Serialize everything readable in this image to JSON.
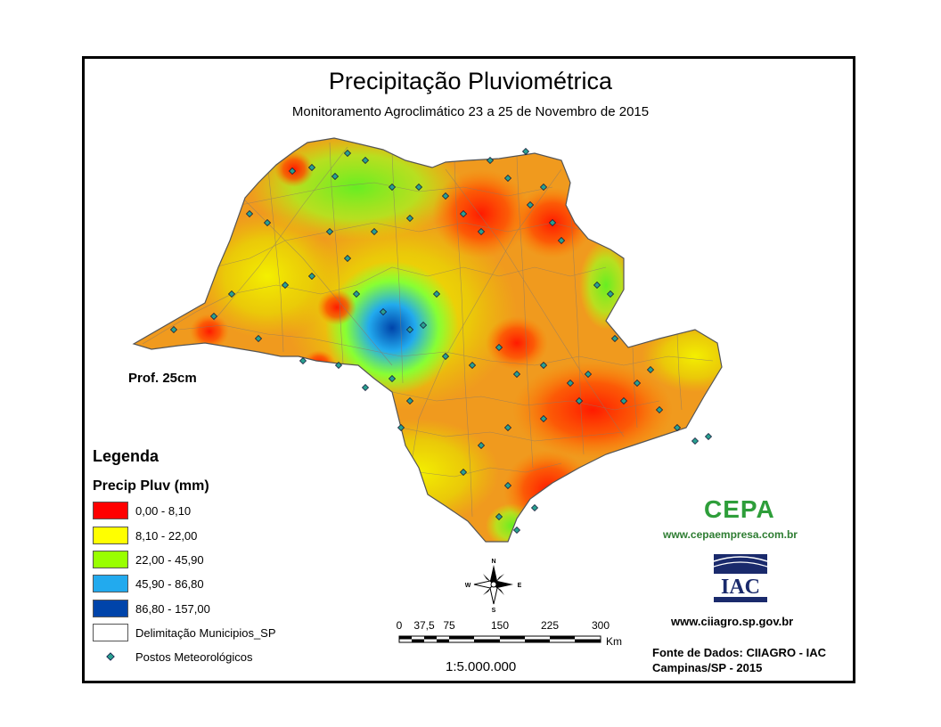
{
  "title": "Precipitação Pluviométrica",
  "subtitle": "Monitoramento Agroclimático 23 a 25 de Novembro de 2015",
  "depth_label": "Prof. 25cm",
  "legend": {
    "title": "Legenda",
    "subtitle": "Precip Pluv (mm)",
    "classes": [
      {
        "label": "0,00 - 8,10",
        "color": "#ff0000"
      },
      {
        "label": "8,10 - 22,00",
        "color": "#ffff00"
      },
      {
        "label": "22,00 - 45,90",
        "color": "#99ff00"
      },
      {
        "label": "45,90 - 86,80",
        "color": "#22aaee"
      },
      {
        "label": "86,80 - 157,00",
        "color": "#0044aa"
      }
    ],
    "municipalities_label": "Delimitação Municipios_SP",
    "stations_label": "Postos Meteorológicos",
    "station_color": "#2aa090"
  },
  "north_arrow": {
    "n": "N",
    "s": "S",
    "e": "E",
    "w": "W"
  },
  "scale_bar": {
    "ticks": [
      "0",
      "37,5",
      "75",
      "150",
      "225",
      "300"
    ],
    "unit": "Km",
    "ratio": "1:5.000.000"
  },
  "cepa": {
    "name": "CEPA",
    "url": "www.cepaempresa.com.br",
    "color": "#2e9e3a"
  },
  "iac": {
    "name": "IAC",
    "url": "www.ciiagro.sp.gov.br",
    "color": "#1a2a6c"
  },
  "source": {
    "line1": "Fonte de Dados: CIIAGRO - IAC",
    "line2": "Campinas/SP - 2015"
  }
}
